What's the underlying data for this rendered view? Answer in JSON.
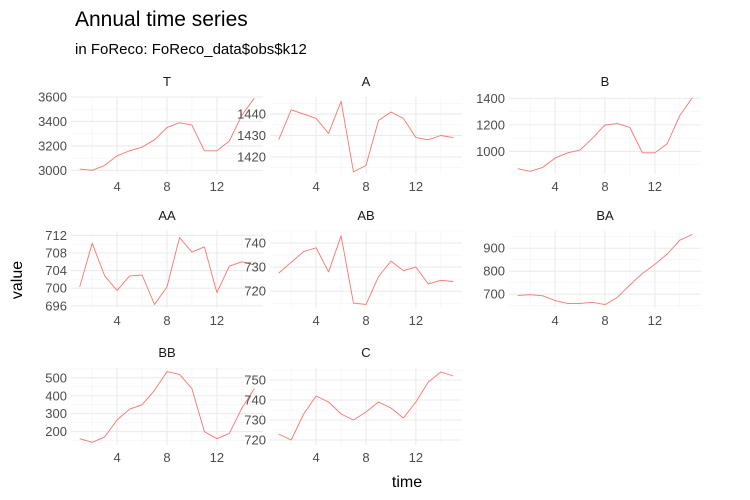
{
  "chart_data": {
    "type": "line",
    "title": "Annual time series",
    "subtitle": "in FoReco: FoReco_data$obs$k12",
    "xlabel": "time",
    "ylabel": "value",
    "x": [
      1,
      2,
      3,
      4,
      5,
      6,
      7,
      8,
      9,
      10,
      11,
      12,
      13,
      14,
      15
    ],
    "xlim": [
      0.3,
      15.7
    ],
    "x_breaks": [
      4,
      8,
      12
    ],
    "x_tick_labels": [
      "4",
      "8",
      "12"
    ],
    "line_color": "#F8766D",
    "grid": true,
    "legend": "none",
    "panels": [
      {
        "name": "T",
        "ylim": [
          2970,
          3600
        ],
        "y_breaks": [
          3000,
          3200,
          3400,
          3600
        ],
        "y_tick_labels": [
          "3000",
          "3200",
          "3400",
          "3600"
        ],
        "values": [
          3010,
          3000,
          3040,
          3120,
          3160,
          3190,
          3250,
          3350,
          3390,
          3370,
          3160,
          3160,
          3240,
          3450,
          3590
        ]
      },
      {
        "name": "A",
        "ylim": [
          1412,
          1448
        ],
        "y_breaks": [
          1420,
          1430,
          1440
        ],
        "y_tick_labels": [
          "1420",
          "1430",
          "1440"
        ],
        "values": [
          1428,
          1442,
          1440,
          1438,
          1431,
          1446,
          1413,
          1416,
          1437,
          1441,
          1438,
          1429,
          1428,
          1430,
          1429
        ]
      },
      {
        "name": "B",
        "ylim": [
          830,
          1410
        ],
        "y_breaks": [
          1000,
          1200,
          1400
        ],
        "y_tick_labels": [
          "1000",
          "1200",
          "1400"
        ],
        "values": [
          870,
          850,
          880,
          950,
          990,
          1010,
          1100,
          1200,
          1210,
          1180,
          990,
          990,
          1060,
          1270,
          1405
        ]
      },
      {
        "name": "AA",
        "ylim": [
          695.5,
          713
        ],
        "y_breaks": [
          696,
          700,
          704,
          708,
          712
        ],
        "y_tick_labels": [
          "696",
          "700",
          "704",
          "708",
          "712"
        ],
        "values": [
          700.3,
          710.2,
          702.8,
          699.5,
          702.8,
          703.0,
          696.3,
          700.3,
          711.5,
          708.2,
          709.4,
          699.0,
          705.0,
          706.0,
          705.3
        ]
      },
      {
        "name": "AB",
        "ylim": [
          713,
          745
        ],
        "y_breaks": [
          720,
          730,
          740
        ],
        "y_tick_labels": [
          "720",
          "730",
          "740"
        ],
        "values": [
          727.5,
          732,
          736.5,
          738,
          728,
          743,
          715,
          714.5,
          726,
          732.5,
          728.5,
          730,
          723,
          724.5,
          724
        ]
      },
      {
        "name": "BA",
        "ylim": [
          640,
          975
        ],
        "y_breaks": [
          700,
          800,
          900
        ],
        "y_tick_labels": [
          "700",
          "800",
          "900"
        ],
        "values": [
          695,
          698,
          693,
          672,
          660,
          660,
          665,
          655,
          687,
          740,
          790,
          830,
          875,
          935,
          960
        ]
      },
      {
        "name": "BB",
        "ylim": [
          125,
          555
        ],
        "y_breaks": [
          200,
          300,
          400,
          500
        ],
        "y_tick_labels": [
          "200",
          "300",
          "400",
          "500"
        ],
        "values": [
          160,
          140,
          170,
          265,
          325,
          350,
          430,
          535,
          520,
          440,
          200,
          160,
          190,
          330,
          440
        ]
      },
      {
        "name": "C",
        "ylim": [
          717.5,
          756
        ],
        "y_breaks": [
          720,
          730,
          740,
          750
        ],
        "y_tick_labels": [
          "720",
          "730",
          "740",
          "750"
        ],
        "values": [
          723,
          720,
          733,
          742,
          739,
          733,
          730,
          734,
          739,
          736,
          731,
          739,
          749,
          754,
          752
        ]
      }
    ]
  }
}
